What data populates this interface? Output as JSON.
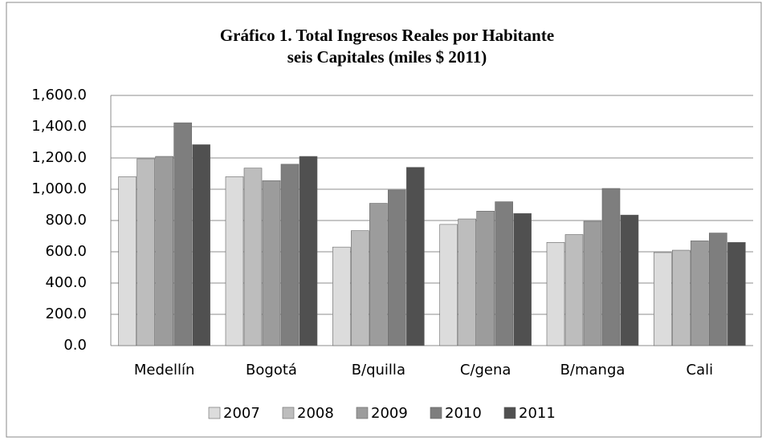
{
  "chart_data": {
    "type": "bar",
    "title": "Gráfico 1. Total Ingresos Reales por Habitante",
    "subtitle": "seis Capitales (miles $ 2011)",
    "categories": [
      "Medellín",
      "Bogotá",
      "B/quilla",
      "C/gena",
      "B/manga",
      "Cali"
    ],
    "series": [
      {
        "name": "2007",
        "color": "#dcdcdc",
        "values": [
          1080,
          1080,
          630,
          775,
          660,
          595
        ]
      },
      {
        "name": "2008",
        "color": "#bdbdbd",
        "values": [
          1195,
          1135,
          735,
          810,
          710,
          610
        ]
      },
      {
        "name": "2009",
        "color": "#9c9c9c",
        "values": [
          1210,
          1055,
          910,
          860,
          795,
          670
        ]
      },
      {
        "name": "2010",
        "color": "#7e7e7e",
        "values": [
          1425,
          1160,
          995,
          920,
          1005,
          720
        ]
      },
      {
        "name": "2011",
        "color": "#505050",
        "values": [
          1285,
          1210,
          1140,
          845,
          835,
          660
        ]
      }
    ],
    "ylim": [
      0,
      1600
    ],
    "yticks": [
      {
        "value": 0,
        "label": "0.0"
      },
      {
        "value": 200,
        "label": "200.0"
      },
      {
        "value": 400,
        "label": "400.0"
      },
      {
        "value": 600,
        "label": "600.0"
      },
      {
        "value": 800,
        "label": "800.0"
      },
      {
        "value": 1000,
        "label": "1,000.0"
      },
      {
        "value": 1200,
        "label": "1,200.0"
      },
      {
        "value": 1400,
        "label": "1,400.0"
      },
      {
        "value": 1600,
        "label": "1,600.0"
      }
    ],
    "grid": true,
    "legend": "bottom"
  }
}
